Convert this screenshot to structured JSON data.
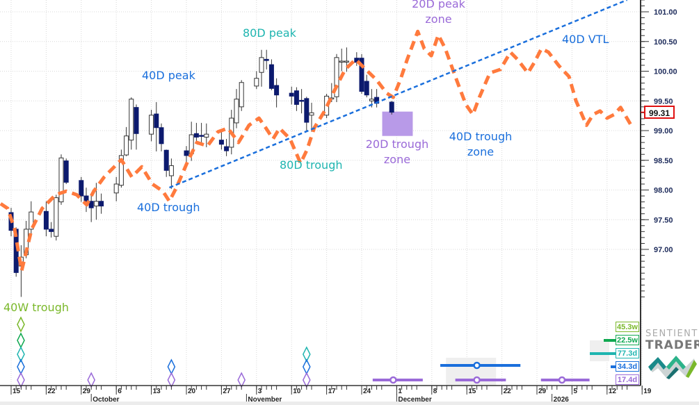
{
  "chart_data": {
    "type": "candlestick",
    "title": "",
    "ylim": [
      96.2,
      101.2
    ],
    "yticks": [
      "101.00",
      "100.50",
      "100.00",
      "99.50",
      "99.00",
      "98.50",
      "98.00",
      "97.50",
      "97.00"
    ],
    "ytick_values": [
      101.0,
      100.5,
      100.0,
      99.5,
      99.0,
      98.5,
      98.0,
      97.5,
      97.0
    ],
    "last_price": "99.31",
    "last_price_value": 99.31,
    "x_unit": "calendar days since Sep 15",
    "xticks": [
      {
        "d": 0,
        "label": "15"
      },
      {
        "d": 7,
        "label": "22"
      },
      {
        "d": 14,
        "label": "29"
      },
      {
        "d": 21,
        "label": "6"
      },
      {
        "d": 28,
        "label": "13"
      },
      {
        "d": 35,
        "label": "20"
      },
      {
        "d": 42,
        "label": "27"
      },
      {
        "d": 49,
        "label": "3"
      },
      {
        "d": 56,
        "label": "10"
      },
      {
        "d": 63,
        "label": "17"
      },
      {
        "d": 70,
        "label": "24"
      },
      {
        "d": 77,
        "label": "1"
      },
      {
        "d": 84,
        "label": "8"
      },
      {
        "d": 91,
        "label": "15"
      },
      {
        "d": 98,
        "label": "22"
      },
      {
        "d": 105,
        "label": "29"
      },
      {
        "d": 112,
        "label": "5"
      },
      {
        "d": 119,
        "label": "12"
      },
      {
        "d": 126,
        "label": "19"
      }
    ],
    "months": [
      {
        "d": 16,
        "label": "October"
      },
      {
        "d": 47,
        "label": "November"
      },
      {
        "d": 77,
        "label": "December"
      },
      {
        "d": 108,
        "label": "2026"
      }
    ],
    "candles": [
      [
        0,
        97.62,
        97.7,
        97.22,
        97.32
      ],
      [
        1,
        97.34,
        97.37,
        96.54,
        96.61
      ],
      [
        2,
        96.72,
        97.07,
        96.2,
        96.87
      ],
      [
        3,
        96.91,
        97.48,
        96.85,
        97.34
      ],
      [
        4,
        97.34,
        97.81,
        97.22,
        97.63
      ],
      [
        7,
        97.64,
        97.81,
        97.22,
        97.34
      ],
      [
        8,
        97.34,
        97.46,
        97.2,
        97.3
      ],
      [
        9,
        97.22,
        97.92,
        97.15,
        97.87
      ],
      [
        10,
        97.8,
        98.6,
        97.75,
        98.54
      ],
      [
        11,
        98.49,
        98.53,
        98.1,
        98.13
      ],
      [
        14,
        98.16,
        98.22,
        97.8,
        97.9
      ],
      [
        15,
        97.9,
        98.04,
        97.63,
        97.77
      ],
      [
        16,
        97.81,
        97.92,
        97.46,
        97.7
      ],
      [
        17,
        97.73,
        98.12,
        97.5,
        97.81
      ],
      [
        18,
        97.81,
        97.94,
        97.6,
        97.73
      ],
      [
        21,
        97.95,
        98.22,
        97.81,
        98.1
      ],
      [
        22,
        98.08,
        98.68,
        98.04,
        98.58
      ],
      [
        23,
        98.59,
        99.06,
        98.57,
        98.91
      ],
      [
        24,
        98.84,
        99.56,
        98.68,
        99.53
      ],
      [
        25,
        99.39,
        99.44,
        98.68,
        98.95
      ],
      [
        28,
        98.94,
        99.35,
        98.82,
        99.26
      ],
      [
        29,
        99.28,
        99.48,
        98.65,
        99.05
      ],
      [
        30,
        99.05,
        99.12,
        98.65,
        98.78
      ],
      [
        31,
        98.67,
        98.68,
        98.22,
        98.33
      ],
      [
        32,
        98.24,
        98.53,
        98.02,
        98.41
      ],
      [
        35,
        98.66,
        98.74,
        98.45,
        98.58
      ],
      [
        36,
        98.61,
        99.15,
        98.49,
        98.93
      ],
      [
        37,
        98.95,
        99.13,
        98.8,
        98.89
      ],
      [
        38,
        98.92,
        99.13,
        98.8,
        98.91
      ],
      [
        39,
        98.89,
        99.12,
        98.72,
        98.94
      ],
      [
        42,
        98.84,
        98.98,
        98.68,
        98.77
      ],
      [
        43,
        98.73,
        98.86,
        98.57,
        98.66
      ],
      [
        44,
        98.72,
        99.35,
        98.6,
        99.21
      ],
      [
        45,
        99.13,
        99.7,
        99.04,
        99.53
      ],
      [
        46,
        99.4,
        99.85,
        99.33,
        99.81
      ],
      [
        49,
        99.75,
        100.0,
        99.7,
        99.88
      ],
      [
        50,
        99.98,
        100.36,
        99.74,
        100.23
      ],
      [
        51,
        100.2,
        100.36,
        100.03,
        100.18
      ],
      [
        52,
        100.11,
        100.2,
        99.68,
        99.71
      ],
      [
        53,
        99.76,
        99.88,
        99.39,
        99.6
      ],
      [
        56,
        99.63,
        99.74,
        99.44,
        99.58
      ],
      [
        57,
        99.67,
        99.73,
        99.33,
        99.44
      ],
      [
        58,
        99.51,
        99.7,
        99.29,
        99.5
      ],
      [
        59,
        99.54,
        99.57,
        98.98,
        99.14
      ],
      [
        60,
        99.26,
        99.47,
        98.98,
        99.3
      ],
      [
        63,
        99.26,
        99.62,
        99.21,
        99.58
      ],
      [
        64,
        99.54,
        99.8,
        99.48,
        99.55
      ],
      [
        65,
        99.57,
        100.29,
        99.48,
        100.23
      ],
      [
        66,
        100.16,
        100.38,
        100.0,
        100.17
      ],
      [
        67,
        100.16,
        100.4,
        99.99,
        100.17
      ],
      [
        69,
        100.22,
        100.32,
        100.09,
        100.15
      ],
      [
        70,
        100.22,
        100.29,
        99.62,
        99.66
      ],
      [
        71,
        99.83,
        99.94,
        99.56,
        99.6
      ],
      [
        72,
        99.5,
        99.7,
        99.39,
        99.53
      ],
      [
        73,
        99.56,
        99.7,
        99.39,
        99.46
      ],
      [
        76,
        99.48,
        99.5,
        99.27,
        99.31
      ]
    ],
    "forecast": [
      [
        -2.1,
        97.77
      ],
      [
        -0.7,
        97.69
      ],
      [
        0.7,
        97.34
      ],
      [
        2.1,
        96.64
      ],
      [
        4.1,
        97.34
      ],
      [
        6.2,
        97.69
      ],
      [
        8.9,
        97.92
      ],
      [
        11.0,
        97.98
      ],
      [
        13.1,
        97.92
      ],
      [
        15.1,
        97.75
      ],
      [
        16.5,
        97.98
      ],
      [
        18.6,
        98.22
      ],
      [
        20.6,
        98.39
      ],
      [
        22.0,
        98.51
      ],
      [
        24.1,
        98.22
      ],
      [
        26.1,
        98.39
      ],
      [
        28.2,
        98.1
      ],
      [
        30.3,
        97.98
      ],
      [
        31.6,
        97.81
      ],
      [
        33.0,
        98.04
      ],
      [
        35.1,
        98.45
      ],
      [
        37.1,
        98.8
      ],
      [
        39.2,
        98.74
      ],
      [
        41.3,
        98.98
      ],
      [
        43.3,
        99.04
      ],
      [
        45.4,
        98.8
      ],
      [
        47.5,
        99.09
      ],
      [
        49.5,
        99.21
      ],
      [
        50.9,
        99.04
      ],
      [
        52.3,
        98.86
      ],
      [
        53.6,
        99.04
      ],
      [
        55.7,
        98.86
      ],
      [
        57.8,
        98.45
      ],
      [
        59.1,
        98.68
      ],
      [
        60.5,
        99.04
      ],
      [
        62.6,
        99.33
      ],
      [
        64.6,
        99.68
      ],
      [
        66.7,
        100.03
      ],
      [
        68.8,
        100.2
      ],
      [
        70.8,
        100.03
      ],
      [
        72.9,
        99.86
      ],
      [
        75.0,
        99.63
      ],
      [
        76.3,
        99.56
      ],
      [
        77.7,
        99.85
      ],
      [
        79.1,
        100.2
      ],
      [
        81.2,
        100.67
      ],
      [
        82.5,
        100.38
      ],
      [
        83.9,
        100.26
      ],
      [
        85.3,
        100.61
      ],
      [
        86.7,
        100.38
      ],
      [
        88.7,
        99.91
      ],
      [
        90.8,
        99.44
      ],
      [
        92.2,
        99.27
      ],
      [
        93.5,
        99.56
      ],
      [
        95.6,
        99.97
      ],
      [
        97.7,
        100.03
      ],
      [
        99.7,
        100.32
      ],
      [
        101.1,
        100.2
      ],
      [
        103.2,
        99.97
      ],
      [
        104.5,
        100.15
      ],
      [
        105.9,
        100.38
      ],
      [
        107.3,
        100.32
      ],
      [
        109.4,
        100.09
      ],
      [
        111.4,
        99.91
      ],
      [
        112.8,
        99.5
      ],
      [
        114.9,
        99.09
      ],
      [
        116.2,
        99.27
      ],
      [
        117.6,
        99.33
      ],
      [
        119.0,
        99.21
      ],
      [
        120.4,
        99.27
      ],
      [
        121.7,
        99.39
      ],
      [
        123.8,
        99.09
      ]
    ],
    "vtl": {
      "label": "40D VTL",
      "from": [
        31.6,
        98.04
      ],
      "to": [
        123,
        101.2
      ]
    },
    "trough_zone_box": {
      "d": [
        74.1,
        80.2
      ],
      "price": [
        98.91,
        99.32
      ]
    },
    "annotations": [
      {
        "id": "40w-trough",
        "text": "40W trough"
      },
      {
        "id": "40d-trough",
        "text": "40D trough"
      },
      {
        "id": "40d-peak",
        "text": "40D peak"
      },
      {
        "id": "80d-peak",
        "text": "80D peak"
      },
      {
        "id": "80d-trough",
        "text": "80D trough"
      },
      {
        "id": "20d-peak-zone",
        "text": "20D peak zone"
      },
      {
        "id": "20d-trough-zone",
        "text": "20D trough zone"
      },
      {
        "id": "40d-trough-zone",
        "text": "40D trough zone"
      },
      {
        "id": "40d-vtl",
        "text": "40D VTL"
      }
    ],
    "cycles": [
      {
        "name": "40W",
        "label": "45.3w",
        "color": "#7ab82a"
      },
      {
        "name": "20W",
        "label": "22.5w",
        "color": "#0fa850"
      },
      {
        "name": "80D",
        "label": "77.3d",
        "color": "#1fb5b0"
      },
      {
        "name": "40D",
        "label": "34.3d",
        "color": "#1a6fdc"
      },
      {
        "name": "20D",
        "label": "17.4d",
        "color": "#9a6ad8"
      }
    ],
    "cycle_troughs": [
      {
        "d": 0,
        "cycles": [
          "40W",
          "20W",
          "80D",
          "40D",
          "20D"
        ]
      },
      {
        "d": 16,
        "cycles": [
          "20D"
        ]
      },
      {
        "d": 32,
        "cycles": [
          "40D",
          "20D"
        ]
      },
      {
        "d": 46,
        "cycles": [
          "20D"
        ]
      },
      {
        "d": 59,
        "cycles": [
          "80D",
          "40D",
          "20D"
        ]
      }
    ],
    "cycle_projections": [
      {
        "cycle": "20D",
        "center": 76.3,
        "range": [
          72.2,
          82.2
        ]
      },
      {
        "cycle": "40D",
        "center": 93,
        "range": [
          85.7,
          101.7
        ]
      },
      {
        "cycle": "20D",
        "center": 93,
        "range": [
          88.7,
          98.8
        ]
      },
      {
        "cycle": "20D",
        "center": 110,
        "range": [
          105.8,
          115.5
        ]
      }
    ],
    "colors": {
      "forecast": "#ff7a3d",
      "vtl": "#1a6fdc",
      "up_body": "#ffffff",
      "down_body": "#0c1a6e",
      "zone": "#b89ae8",
      "last_price": "#e01010"
    }
  },
  "logo": {
    "line1": "SENTIENT",
    "line2": "TRADER"
  }
}
